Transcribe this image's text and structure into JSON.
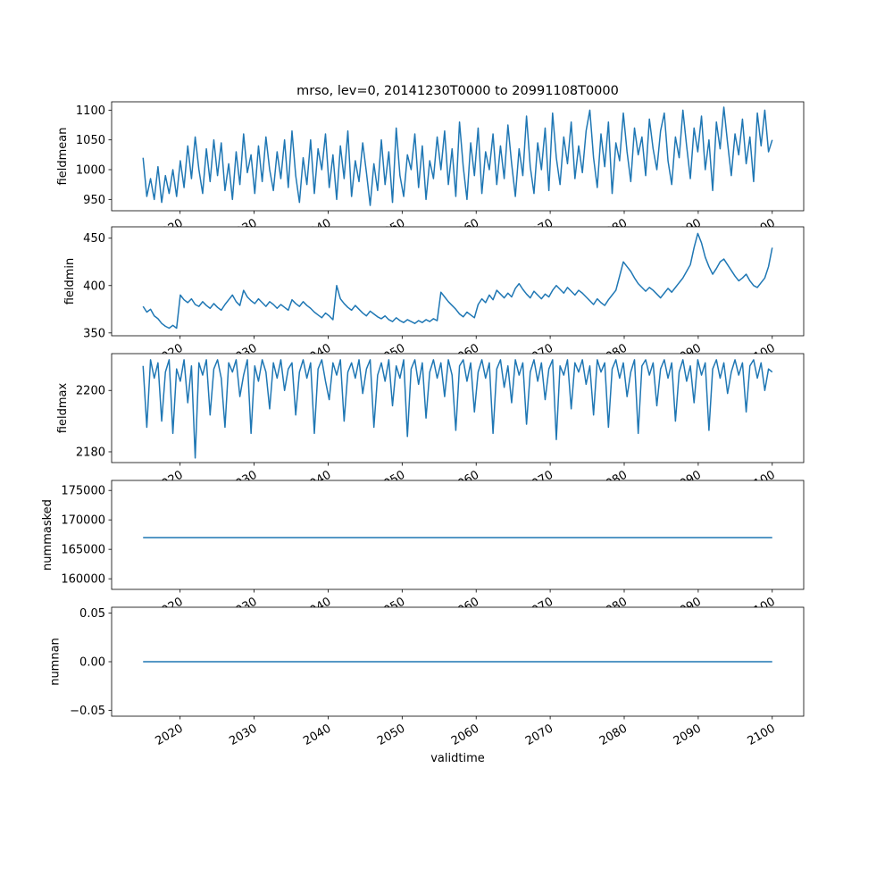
{
  "chart_data": {
    "type": "line",
    "title": "mrso, lev=0, 20141230T0000 to 20991108T0000",
    "xlabel": "validtime",
    "grid": false,
    "legend": null,
    "line_color": "#1f77b4",
    "xlim": [
      2010.75,
      2104.25
    ],
    "x_ticks": {
      "values": [
        2020,
        2030,
        2040,
        2050,
        2060,
        2070,
        2080,
        2090,
        2100
      ],
      "labels": [
        "2020",
        "2030",
        "2040",
        "2050",
        "2060",
        "2070",
        "2080",
        "2090",
        "2100"
      ]
    },
    "subplots": [
      {
        "ylabel": "fieldmean",
        "ylim": [
          931,
          1114
        ],
        "yticks": {
          "values": [
            950,
            1000,
            1050,
            1100
          ],
          "labels": [
            "950",
            "1000",
            "1050",
            "1100"
          ]
        },
        "x_start": 2015,
        "x_end": 2100,
        "y": [
          1020,
          955,
          985,
          950,
          1005,
          945,
          990,
          960,
          1000,
          955,
          1015,
          970,
          1040,
          985,
          1055,
          1000,
          960,
          1035,
          980,
          1050,
          990,
          1045,
          965,
          1010,
          950,
          1030,
          975,
          1060,
          995,
          1025,
          960,
          1040,
          980,
          1055,
          1000,
          965,
          1030,
          985,
          1050,
          970,
          1065,
          990,
          945,
          1020,
          975,
          1050,
          960,
          1035,
          1000,
          1060,
          970,
          1025,
          950,
          1040,
          985,
          1065,
          955,
          1015,
          980,
          1045,
          995,
          940,
          1010,
          965,
          1050,
          975,
          1030,
          945,
          1070,
          990,
          955,
          1025,
          1000,
          1060,
          970,
          1040,
          950,
          1015,
          985,
          1055,
          1000,
          1065,
          975,
          1035,
          955,
          1080,
          1005,
          950,
          1045,
          990,
          1070,
          960,
          1030,
          1000,
          1060,
          975,
          1040,
          985,
          1075,
          1010,
          955,
          1035,
          990,
          1090,
          1005,
          960,
          1045,
          1000,
          1070,
          965,
          1095,
          1020,
          975,
          1055,
          1010,
          1080,
          985,
          1040,
          995,
          1065,
          1100,
          1020,
          970,
          1060,
          1005,
          1080,
          960,
          1045,
          1015,
          1095,
          1030,
          980,
          1070,
          1025,
          1055,
          990,
          1085,
          1035,
          1000,
          1065,
          1095,
          1015,
          975,
          1055,
          1020,
          1100,
          1040,
          985,
          1070,
          1030,
          1090,
          1000,
          1050,
          965,
          1080,
          1035,
          1105,
          1045,
          990,
          1060,
          1025,
          1085,
          1010,
          1055,
          980,
          1095,
          1040,
          1100,
          1030,
          1050
        ]
      },
      {
        "ylabel": "fieldmin",
        "ylim": [
          347,
          462
        ],
        "yticks": {
          "values": [
            350,
            400,
            450
          ],
          "labels": [
            "350",
            "400",
            "450"
          ]
        },
        "x_start": 2015,
        "x_end": 2100,
        "y": [
          378,
          372,
          375,
          368,
          365,
          360,
          357,
          355,
          358,
          355,
          390,
          385,
          382,
          386,
          380,
          378,
          383,
          379,
          376,
          381,
          377,
          374,
          380,
          385,
          390,
          383,
          379,
          395,
          388,
          384,
          381,
          386,
          382,
          378,
          383,
          380,
          376,
          380,
          377,
          374,
          385,
          381,
          378,
          383,
          379,
          376,
          372,
          369,
          366,
          371,
          368,
          364,
          400,
          386,
          381,
          377,
          374,
          379,
          375,
          371,
          368,
          373,
          370,
          367,
          365,
          368,
          364,
          362,
          366,
          363,
          361,
          364,
          362,
          360,
          363,
          361,
          364,
          362,
          365,
          363,
          393,
          388,
          383,
          379,
          375,
          370,
          367,
          372,
          369,
          366,
          380,
          386,
          382,
          390,
          385,
          395,
          391,
          387,
          392,
          388,
          397,
          402,
          396,
          391,
          387,
          394,
          390,
          386,
          391,
          388,
          395,
          400,
          396,
          392,
          398,
          394,
          390,
          395,
          392,
          388,
          384,
          380,
          386,
          382,
          379,
          385,
          390,
          395,
          410,
          425,
          420,
          415,
          408,
          402,
          398,
          394,
          398,
          395,
          391,
          387,
          392,
          397,
          393,
          398,
          403,
          408,
          415,
          422,
          440,
          455,
          445,
          430,
          420,
          412,
          418,
          425,
          428,
          422,
          416,
          410,
          405,
          408,
          412,
          405,
          400,
          398,
          403,
          408,
          420,
          440
        ]
      },
      {
        "ylabel": "fieldmax",
        "ylim": [
          2176.5,
          2212
        ],
        "yticks": {
          "values": [
            2180,
            2200
          ],
          "labels": [
            "2180",
            "2200"
          ]
        },
        "x_start": 2015,
        "x_end": 2100,
        "y": [
          2208,
          2188,
          2210,
          2204,
          2209,
          2190,
          2206,
          2210,
          2186,
          2207,
          2203,
          2210,
          2196,
          2208,
          2178,
          2209,
          2205,
          2210,
          2192,
          2207,
          2210,
          2204,
          2188,
          2209,
          2206,
          2210,
          2198,
          2205,
          2210,
          2186,
          2208,
          2203,
          2210,
          2206,
          2194,
          2209,
          2204,
          2210,
          2200,
          2207,
          2209,
          2192,
          2206,
          2210,
          2204,
          2209,
          2186,
          2207,
          2210,
          2203,
          2197,
          2209,
          2205,
          2210,
          2190,
          2206,
          2209,
          2204,
          2210,
          2199,
          2207,
          2210,
          2188,
          2205,
          2209,
          2203,
          2210,
          2195,
          2208,
          2204,
          2210,
          2185,
          2207,
          2210,
          2202,
          2209,
          2191,
          2206,
          2210,
          2204,
          2209,
          2198,
          2210,
          2205,
          2187,
          2208,
          2210,
          2203,
          2209,
          2193,
          2206,
          2210,
          2204,
          2209,
          2186,
          2207,
          2210,
          2201,
          2208,
          2196,
          2210,
          2205,
          2209,
          2189,
          2206,
          2210,
          2203,
          2209,
          2197,
          2207,
          2210,
          2184,
          2208,
          2205,
          2210,
          2194,
          2209,
          2206,
          2210,
          2202,
          2208,
          2192,
          2210,
          2206,
          2209,
          2188,
          2207,
          2210,
          2204,
          2209,
          2198,
          2206,
          2210,
          2186,
          2208,
          2210,
          2205,
          2209,
          2195,
          2207,
          2210,
          2204,
          2209,
          2190,
          2206,
          2210,
          2203,
          2208,
          2196,
          2210,
          2205,
          2209,
          2187,
          2207,
          2210,
          2204,
          2209,
          2199,
          2206,
          2210,
          2205,
          2209,
          2193,
          2208,
          2210,
          2204,
          2209,
          2200,
          2207,
          2206
        ]
      },
      {
        "ylabel": "nummasked",
        "ylim": [
          158200,
          176700
        ],
        "yticks": {
          "values": [
            160000,
            165000,
            170000,
            175000
          ],
          "labels": [
            "160000",
            "165000",
            "170000",
            "175000"
          ]
        },
        "x_span": [
          2015,
          2100
        ],
        "y_const": 167000
      },
      {
        "ylabel": "numnan",
        "ylim": [
          -0.0561,
          0.0561
        ],
        "yticks": {
          "values": [
            -0.05,
            0,
            0.05
          ],
          "labels": [
            "−0.05",
            "0.00",
            "0.05"
          ]
        },
        "x_span": [
          2015,
          2100
        ],
        "y_const": 0
      }
    ]
  }
}
